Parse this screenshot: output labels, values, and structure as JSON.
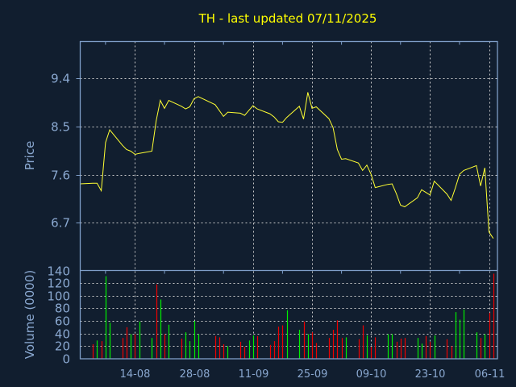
{
  "colors": {
    "background": "#111e2f",
    "axis": "#7f9ec8",
    "label": "#8aa8d0",
    "grid": "#c8c8c8",
    "title": "#ffff00",
    "price_line": "#ffff33",
    "up": "#00ee00",
    "down": "#ee0000"
  },
  "chart_data": [
    {
      "type": "line",
      "title": "TH - last updated 07/11/2025",
      "ylabel": "Price",
      "xlabel": "",
      "ylim": [
        5.81,
        10.09
      ],
      "xlim": [
        "2025-08-01",
        "2025-11-08"
      ],
      "yticks": [
        9.4,
        8.5,
        7.6,
        6.7
      ],
      "ytick_labels": [
        "9.4",
        "8.5",
        "7.6",
        "6.7"
      ],
      "grid": true,
      "series": [
        {
          "x": [
            "2025-08-01",
            "2025-08-04",
            "2025-08-05",
            "2025-08-06",
            "2025-08-07",
            "2025-08-08",
            "2025-08-11",
            "2025-08-12",
            "2025-08-13",
            "2025-08-14",
            "2025-08-15",
            "2025-08-18",
            "2025-08-19",
            "2025-08-20",
            "2025-08-21",
            "2025-08-22",
            "2025-08-25",
            "2025-08-26",
            "2025-08-27",
            "2025-08-28",
            "2025-08-29",
            "2025-09-02",
            "2025-09-03",
            "2025-09-04",
            "2025-09-05",
            "2025-09-08",
            "2025-09-09",
            "2025-09-10",
            "2025-09-11",
            "2025-09-12",
            "2025-09-15",
            "2025-09-16",
            "2025-09-17",
            "2025-09-18",
            "2025-09-19",
            "2025-09-22",
            "2025-09-23",
            "2025-09-24",
            "2025-09-25",
            "2025-09-26",
            "2025-09-29",
            "2025-09-30",
            "2025-10-01",
            "2025-10-02",
            "2025-10-03",
            "2025-10-06",
            "2025-10-07",
            "2025-10-08",
            "2025-10-09",
            "2025-10-10",
            "2025-10-13",
            "2025-10-14",
            "2025-10-15",
            "2025-10-16",
            "2025-10-17",
            "2025-10-20",
            "2025-10-21",
            "2025-10-22",
            "2025-10-23",
            "2025-10-24",
            "2025-10-27",
            "2025-10-28",
            "2025-10-29",
            "2025-10-30",
            "2025-10-31",
            "2025-11-03",
            "2025-11-04",
            "2025-11-05",
            "2025-11-06",
            "2025-11-07"
          ],
          "y": [
            7.43,
            7.44,
            7.44,
            7.3,
            8.2,
            8.44,
            8.15,
            8.07,
            8.04,
            7.98,
            8.0,
            8.04,
            8.6,
            8.99,
            8.84,
            8.99,
            8.88,
            8.83,
            8.87,
            9.02,
            9.06,
            8.91,
            8.8,
            8.69,
            8.77,
            8.75,
            8.71,
            8.8,
            8.89,
            8.83,
            8.74,
            8.68,
            8.59,
            8.58,
            8.67,
            8.88,
            8.64,
            9.14,
            8.84,
            8.87,
            8.65,
            8.48,
            8.07,
            7.89,
            7.9,
            7.82,
            7.68,
            7.78,
            7.61,
            7.36,
            7.42,
            7.43,
            7.25,
            7.03,
            7.0,
            7.17,
            7.32,
            7.27,
            7.22,
            7.48,
            7.24,
            7.12,
            7.35,
            7.61,
            7.68,
            7.77,
            7.39,
            7.73,
            6.53,
            6.41
          ]
        }
      ]
    },
    {
      "type": "bar",
      "ylabel": "Volume (0000)",
      "xlabel": "",
      "ylim": [
        0,
        140
      ],
      "xlim": [
        "2025-08-01",
        "2025-11-08"
      ],
      "yticks": [
        0,
        20,
        40,
        60,
        80,
        100,
        120,
        140
      ],
      "ytick_labels": [
        "0",
        "20",
        "40",
        "60",
        "80",
        "100",
        "120",
        "140"
      ],
      "xticks": [
        "2025-08-14",
        "2025-08-28",
        "2025-09-11",
        "2025-09-25",
        "2025-10-09",
        "2025-10-23",
        "2025-11-06"
      ],
      "xtick_labels": [
        "14-08",
        "28-08",
        "11-09",
        "25-09",
        "09-10",
        "23-10",
        "06-11"
      ],
      "grid": true,
      "bars": [
        {
          "date": "2025-08-04",
          "v": 23,
          "dir": "down"
        },
        {
          "date": "2025-08-05",
          "v": 29,
          "dir": "up"
        },
        {
          "date": "2025-08-06",
          "v": 28,
          "dir": "down"
        },
        {
          "date": "2025-08-07",
          "v": 131,
          "dir": "up"
        },
        {
          "date": "2025-08-08",
          "v": 57,
          "dir": "up"
        },
        {
          "date": "2025-08-11",
          "v": 33,
          "dir": "down"
        },
        {
          "date": "2025-08-12",
          "v": 50,
          "dir": "down"
        },
        {
          "date": "2025-08-13",
          "v": 39,
          "dir": "up"
        },
        {
          "date": "2025-08-14",
          "v": 39,
          "dir": "down"
        },
        {
          "date": "2025-08-15",
          "v": 59,
          "dir": "up"
        },
        {
          "date": "2025-08-18",
          "v": 33,
          "dir": "up"
        },
        {
          "date": "2025-08-19",
          "v": 118,
          "dir": "down"
        },
        {
          "date": "2025-08-20",
          "v": 94,
          "dir": "up"
        },
        {
          "date": "2025-08-21",
          "v": 39,
          "dir": "down"
        },
        {
          "date": "2025-08-22",
          "v": 54,
          "dir": "up"
        },
        {
          "date": "2025-08-25",
          "v": 32,
          "dir": "down"
        },
        {
          "date": "2025-08-26",
          "v": 42,
          "dir": "up"
        },
        {
          "date": "2025-08-27",
          "v": 28,
          "dir": "up"
        },
        {
          "date": "2025-08-28",
          "v": 60,
          "dir": "up"
        },
        {
          "date": "2025-08-29",
          "v": 39,
          "dir": "up"
        },
        {
          "date": "2025-09-02",
          "v": 36,
          "dir": "down"
        },
        {
          "date": "2025-09-03",
          "v": 34,
          "dir": "down"
        },
        {
          "date": "2025-09-04",
          "v": 23,
          "dir": "down"
        },
        {
          "date": "2025-09-05",
          "v": 20,
          "dir": "up"
        },
        {
          "date": "2025-09-08",
          "v": 27,
          "dir": "down"
        },
        {
          "date": "2025-09-09",
          "v": 19,
          "dir": "down"
        },
        {
          "date": "2025-09-10",
          "v": 29,
          "dir": "up"
        },
        {
          "date": "2025-09-11",
          "v": 37,
          "dir": "up"
        },
        {
          "date": "2025-09-12",
          "v": 36,
          "dir": "down"
        },
        {
          "date": "2025-09-15",
          "v": 22,
          "dir": "down"
        },
        {
          "date": "2025-09-16",
          "v": 28,
          "dir": "down"
        },
        {
          "date": "2025-09-17",
          "v": 51,
          "dir": "down"
        },
        {
          "date": "2025-09-18",
          "v": 53,
          "dir": "down"
        },
        {
          "date": "2025-09-19",
          "v": 77,
          "dir": "up"
        },
        {
          "date": "2025-09-22",
          "v": 46,
          "dir": "up"
        },
        {
          "date": "2025-09-23",
          "v": 59,
          "dir": "down"
        },
        {
          "date": "2025-09-24",
          "v": 39,
          "dir": "up"
        },
        {
          "date": "2025-09-25",
          "v": 42,
          "dir": "down"
        },
        {
          "date": "2025-09-26",
          "v": 25,
          "dir": "down"
        },
        {
          "date": "2025-09-29",
          "v": 33,
          "dir": "down"
        },
        {
          "date": "2025-09-30",
          "v": 46,
          "dir": "down"
        },
        {
          "date": "2025-10-01",
          "v": 61,
          "dir": "down"
        },
        {
          "date": "2025-10-02",
          "v": 33,
          "dir": "down"
        },
        {
          "date": "2025-10-03",
          "v": 34,
          "dir": "up"
        },
        {
          "date": "2025-10-06",
          "v": 31,
          "dir": "down"
        },
        {
          "date": "2025-10-07",
          "v": 53,
          "dir": "down"
        },
        {
          "date": "2025-10-08",
          "v": 37,
          "dir": "up"
        },
        {
          "date": "2025-10-09",
          "v": 19,
          "dir": "down"
        },
        {
          "date": "2025-10-10",
          "v": 34,
          "dir": "down"
        },
        {
          "date": "2025-10-13",
          "v": 39,
          "dir": "up"
        },
        {
          "date": "2025-10-14",
          "v": 39,
          "dir": "up"
        },
        {
          "date": "2025-10-15",
          "v": 27,
          "dir": "down"
        },
        {
          "date": "2025-10-16",
          "v": 32,
          "dir": "down"
        },
        {
          "date": "2025-10-17",
          "v": 33,
          "dir": "down"
        },
        {
          "date": "2025-10-20",
          "v": 33,
          "dir": "up"
        },
        {
          "date": "2025-10-21",
          "v": 24,
          "dir": "up"
        },
        {
          "date": "2025-10-22",
          "v": 36,
          "dir": "down"
        },
        {
          "date": "2025-10-23",
          "v": 27,
          "dir": "down"
        },
        {
          "date": "2025-10-24",
          "v": 37,
          "dir": "up"
        },
        {
          "date": "2025-10-27",
          "v": 31,
          "dir": "down"
        },
        {
          "date": "2025-10-28",
          "v": 20,
          "dir": "down"
        },
        {
          "date": "2025-10-29",
          "v": 74,
          "dir": "up"
        },
        {
          "date": "2025-10-30",
          "v": 62,
          "dir": "up"
        },
        {
          "date": "2025-10-31",
          "v": 78,
          "dir": "up"
        },
        {
          "date": "2025-11-03",
          "v": 42,
          "dir": "up"
        },
        {
          "date": "2025-11-04",
          "v": 33,
          "dir": "down"
        },
        {
          "date": "2025-11-05",
          "v": 39,
          "dir": "up"
        },
        {
          "date": "2025-11-06",
          "v": 73,
          "dir": "down"
        },
        {
          "date": "2025-11-07",
          "v": 135,
          "dir": "down"
        }
      ]
    }
  ]
}
